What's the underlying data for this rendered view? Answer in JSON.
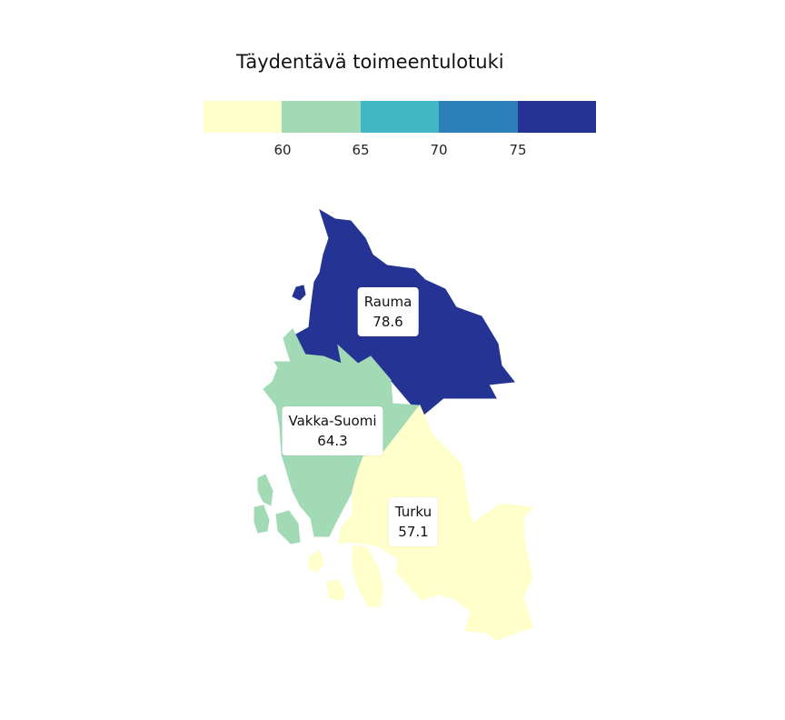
{
  "legend": {
    "title": "Täydentävä toimeentulotuki",
    "ticks": [
      "60",
      "65",
      "70",
      "75"
    ],
    "colors": [
      "#ffffcc",
      "#a1dab4",
      "#41b6c4",
      "#2c7fb8",
      "#253494"
    ]
  },
  "regions": [
    {
      "name": "Rauma",
      "value": "78.6",
      "color": "#253494"
    },
    {
      "name": "Vakka-Suomi",
      "value": "64.3",
      "color": "#a1dab4"
    },
    {
      "name": "Turku",
      "value": "57.1",
      "color": "#ffffcc"
    }
  ]
}
